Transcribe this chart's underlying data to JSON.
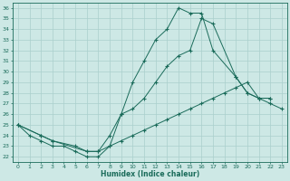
{
  "xlabel": "Humidex (Indice chaleur)",
  "bg_color": "#cde8e5",
  "grid_color": "#aacfcc",
  "line_color": "#1a6b5a",
  "xlim": [
    -0.5,
    23.5
  ],
  "ylim": [
    21.5,
    36.5
  ],
  "xticks": [
    0,
    1,
    2,
    3,
    4,
    5,
    6,
    7,
    8,
    9,
    10,
    11,
    12,
    13,
    14,
    15,
    16,
    17,
    18,
    19,
    20,
    21,
    22,
    23
  ],
  "yticks": [
    22,
    23,
    24,
    25,
    26,
    27,
    28,
    29,
    30,
    31,
    32,
    33,
    34,
    35,
    36
  ],
  "line1_x": [
    0,
    1,
    2,
    3,
    4,
    5,
    6,
    7,
    8,
    9,
    10,
    11,
    12,
    13,
    14,
    15,
    16,
    17,
    19,
    20,
    21,
    22
  ],
  "line1_y": [
    25,
    24,
    23.5,
    23,
    23,
    22.5,
    22,
    22,
    23,
    26,
    29,
    31,
    33,
    34,
    36,
    35.5,
    35.5,
    32,
    29.5,
    28,
    27.5,
    27.5
  ],
  "line2_x": [
    0,
    2,
    3,
    6,
    7,
    8,
    9,
    10,
    11,
    12,
    13,
    14,
    15,
    16,
    17,
    19,
    20,
    21,
    22
  ],
  "line2_y": [
    25,
    24,
    23.5,
    22.5,
    22.5,
    24,
    26,
    26.5,
    27.5,
    29,
    30.5,
    31.5,
    32,
    35,
    34.5,
    29.5,
    28,
    27.5,
    27.5
  ],
  "line3_x": [
    0,
    2,
    3,
    5,
    6,
    7,
    8,
    9,
    10,
    11,
    12,
    13,
    14,
    15,
    16,
    17,
    18,
    19,
    20,
    21,
    22,
    23
  ],
  "line3_y": [
    25,
    24,
    23.5,
    23,
    22.5,
    22.5,
    23,
    23.5,
    24,
    24.5,
    25,
    25.5,
    26,
    26.5,
    27,
    27.5,
    28,
    28.5,
    29,
    27.5,
    27,
    26.5
  ]
}
